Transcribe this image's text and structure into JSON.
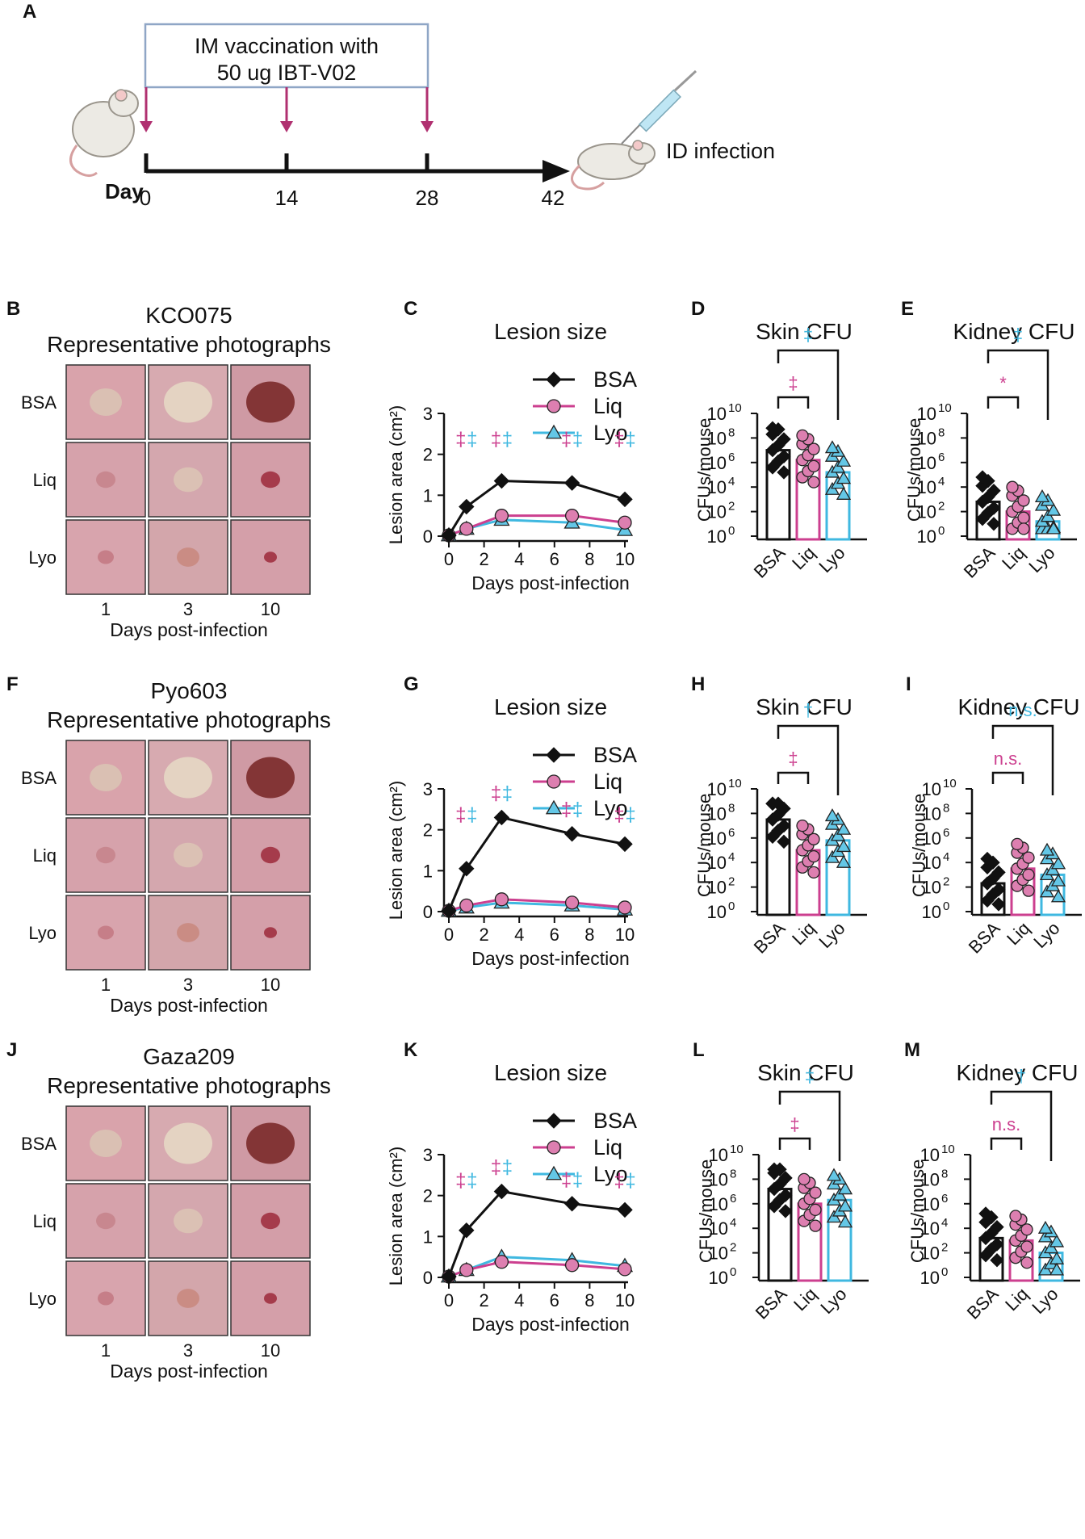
{
  "colors": {
    "bsa": "#111111",
    "liq": "#cc3f8f",
    "liq_fill": "#dd7fb0",
    "lyo": "#3fb8e0",
    "lyo_fill": "#64c7e6"
  },
  "panel_a": {
    "letter": "A",
    "box_text": [
      "IM vaccination with",
      "50 ug IBT-V02"
    ],
    "day_label": "Day",
    "days": [
      "0",
      "14",
      "28",
      "42"
    ],
    "infection_label": "ID infection"
  },
  "rows": [
    {
      "photo_letter": "B",
      "strain": "KCO075",
      "photo_subtitle": "Representative photographs",
      "photo_rows": [
        "BSA",
        "Liq",
        "Lyo"
      ],
      "photo_cols": [
        "1",
        "3",
        "10"
      ],
      "photo_xlabel": "Days post-infection",
      "lesion_letter": "C",
      "skin_letter": "D",
      "kidney_letter": "E"
    },
    {
      "photo_letter": "F",
      "strain": "Pyo603",
      "photo_subtitle": "Representative photographs",
      "photo_rows": [
        "BSA",
        "Liq",
        "Lyo"
      ],
      "photo_cols": [
        "1",
        "3",
        "10"
      ],
      "photo_xlabel": "Days post-infection",
      "lesion_letter": "G",
      "skin_letter": "H",
      "kidney_letter": "I"
    },
    {
      "photo_letter": "J",
      "strain": "Gaza209",
      "photo_subtitle": "Representative photographs",
      "photo_rows": [
        "BSA",
        "Liq",
        "Lyo"
      ],
      "photo_cols": [
        "1",
        "3",
        "10"
      ],
      "photo_xlabel": "Days post-infection",
      "lesion_letter": "K",
      "skin_letter": "L",
      "kidney_letter": "M"
    }
  ],
  "chart_data": [
    {
      "panel": "C",
      "type": "line",
      "title": "Lesion size",
      "xlabel": "Days post-infection",
      "ylabel": "Lesion area (cm²)",
      "xlim": [
        0,
        10
      ],
      "ylim": [
        0,
        3
      ],
      "xticks": [
        0,
        2,
        4,
        6,
        8,
        10
      ],
      "yticks": [
        0,
        1,
        2,
        3
      ],
      "x": [
        0,
        1,
        3,
        7,
        10
      ],
      "series": [
        {
          "name": "BSA",
          "values": [
            0.02,
            0.72,
            1.35,
            1.3,
            0.9
          ]
        },
        {
          "name": "Liq",
          "values": [
            0.02,
            0.18,
            0.5,
            0.5,
            0.33
          ]
        },
        {
          "name": "Lyo",
          "values": [
            0.02,
            0.18,
            0.4,
            0.33,
            0.15
          ]
        }
      ],
      "significance": [
        {
          "x": 1,
          "liq": "‡",
          "lyo": "‡"
        },
        {
          "x": 3,
          "liq": "‡",
          "lyo": "‡"
        },
        {
          "x": 7,
          "liq": "‡",
          "lyo": "‡"
        },
        {
          "x": 10,
          "liq": "‡",
          "lyo": "‡"
        }
      ]
    },
    {
      "panel": "D",
      "type": "bar",
      "title": "Skin CFU",
      "ylabel": "CFUs/mouse",
      "yscale": "log",
      "categories": [
        "BSA",
        "Liq",
        "Lyo"
      ],
      "ylim_exp": [
        0,
        10
      ],
      "ytick_exps": [
        0,
        2,
        4,
        6,
        8,
        10
      ],
      "values_log": [
        7.0,
        6.2,
        5.2
      ],
      "brackets": [
        {
          "to": "Liq",
          "label": "‡",
          "color": "liq"
        },
        {
          "to": "Lyo",
          "label": "‡",
          "color": "lyo"
        }
      ]
    },
    {
      "panel": "E",
      "type": "bar",
      "title": "Kidney CFU",
      "ylabel": "CFUs/mouse",
      "yscale": "log",
      "categories": [
        "BSA",
        "Liq",
        "Lyo"
      ],
      "ylim_exp": [
        0,
        10
      ],
      "ytick_exps": [
        0,
        2,
        4,
        6,
        8,
        10
      ],
      "values_log": [
        2.8,
        2.0,
        1.2
      ],
      "brackets": [
        {
          "to": "Liq",
          "label": "*",
          "color": "liq"
        },
        {
          "to": "Lyo",
          "label": "‡",
          "color": "lyo"
        }
      ]
    },
    {
      "panel": "G",
      "type": "line",
      "title": "Lesion size",
      "xlabel": "Days post-infection",
      "ylabel": "Lesion area (cm²)",
      "xlim": [
        0,
        10
      ],
      "ylim": [
        0,
        3
      ],
      "xticks": [
        0,
        2,
        4,
        6,
        8,
        10
      ],
      "yticks": [
        0,
        1,
        2,
        3
      ],
      "x": [
        0,
        1,
        3,
        7,
        10
      ],
      "series": [
        {
          "name": "BSA",
          "values": [
            0.02,
            1.05,
            2.3,
            1.9,
            1.65
          ]
        },
        {
          "name": "Liq",
          "values": [
            0.02,
            0.15,
            0.3,
            0.22,
            0.1
          ]
        },
        {
          "name": "Lyo",
          "values": [
            0.02,
            0.1,
            0.22,
            0.15,
            0.05
          ]
        }
      ],
      "significance": [
        {
          "x": 1,
          "liq": "‡",
          "lyo": "‡"
        },
        {
          "x": 3,
          "liq": "‡",
          "lyo": "‡"
        },
        {
          "x": 7,
          "liq": "‡",
          "lyo": "‡"
        },
        {
          "x": 10,
          "liq": "‡",
          "lyo": "‡"
        }
      ]
    },
    {
      "panel": "H",
      "type": "bar",
      "title": "Skin CFU",
      "ylabel": "CFUs/mouse",
      "yscale": "log",
      "categories": [
        "BSA",
        "Liq",
        "Lyo"
      ],
      "ylim_exp": [
        0,
        10
      ],
      "ytick_exps": [
        0,
        2,
        4,
        6,
        8,
        10
      ],
      "values_log": [
        7.5,
        5.0,
        5.8
      ],
      "brackets": [
        {
          "to": "Liq",
          "label": "‡",
          "color": "liq"
        },
        {
          "to": "Lyo",
          "label": "†",
          "color": "lyo"
        }
      ]
    },
    {
      "panel": "I",
      "type": "bar",
      "title": "Kidney CFU",
      "ylabel": "CFUs/mouse",
      "yscale": "log",
      "categories": [
        "BSA",
        "Liq",
        "Lyo"
      ],
      "ylim_exp": [
        0,
        10
      ],
      "ytick_exps": [
        0,
        2,
        4,
        6,
        8,
        10
      ],
      "values_log": [
        2.3,
        3.5,
        3.0
      ],
      "brackets": [
        {
          "to": "Liq",
          "label": "n.s.",
          "color": "liq"
        },
        {
          "to": "Lyo",
          "label": "n.s.",
          "color": "lyo"
        }
      ]
    },
    {
      "panel": "K",
      "type": "line",
      "title": "Lesion size",
      "xlabel": "Days post-infection",
      "ylabel": "Lesion area (cm²)",
      "xlim": [
        0,
        10
      ],
      "ylim": [
        0,
        3
      ],
      "xticks": [
        0,
        2,
        4,
        6,
        8,
        10
      ],
      "yticks": [
        0,
        1,
        2,
        3
      ],
      "x": [
        0,
        1,
        3,
        7,
        10
      ],
      "series": [
        {
          "name": "BSA",
          "values": [
            0.02,
            1.15,
            2.1,
            1.8,
            1.65
          ]
        },
        {
          "name": "Liq",
          "values": [
            0.02,
            0.18,
            0.38,
            0.3,
            0.2
          ]
        },
        {
          "name": "Lyo",
          "values": [
            0.02,
            0.18,
            0.5,
            0.42,
            0.28
          ]
        }
      ],
      "significance": [
        {
          "x": 1,
          "liq": "‡",
          "lyo": "‡"
        },
        {
          "x": 3,
          "liq": "‡",
          "lyo": "‡"
        },
        {
          "x": 7,
          "liq": "‡",
          "lyo": "‡"
        },
        {
          "x": 10,
          "liq": "‡",
          "lyo": "‡"
        }
      ]
    },
    {
      "panel": "L",
      "type": "bar",
      "title": "Skin CFU",
      "ylabel": "CFUs/mouse",
      "yscale": "log",
      "categories": [
        "BSA",
        "Liq",
        "Lyo"
      ],
      "ylim_exp": [
        0,
        10
      ],
      "ytick_exps": [
        0,
        2,
        4,
        6,
        8,
        10
      ],
      "values_log": [
        7.2,
        6.0,
        6.3
      ],
      "brackets": [
        {
          "to": "Liq",
          "label": "‡",
          "color": "liq"
        },
        {
          "to": "Lyo",
          "label": "‡",
          "color": "lyo"
        }
      ]
    },
    {
      "panel": "M",
      "type": "bar",
      "title": "Kidney CFU",
      "ylabel": "CFUs/mouse",
      "yscale": "log",
      "categories": [
        "BSA",
        "Liq",
        "Lyo"
      ],
      "ylim_exp": [
        0,
        10
      ],
      "ytick_exps": [
        0,
        2,
        4,
        6,
        8,
        10
      ],
      "values_log": [
        3.2,
        3.0,
        2.0
      ],
      "brackets": [
        {
          "to": "Liq",
          "label": "n.s.",
          "color": "liq"
        },
        {
          "to": "Lyo",
          "label": "†",
          "color": "lyo"
        }
      ]
    }
  ]
}
